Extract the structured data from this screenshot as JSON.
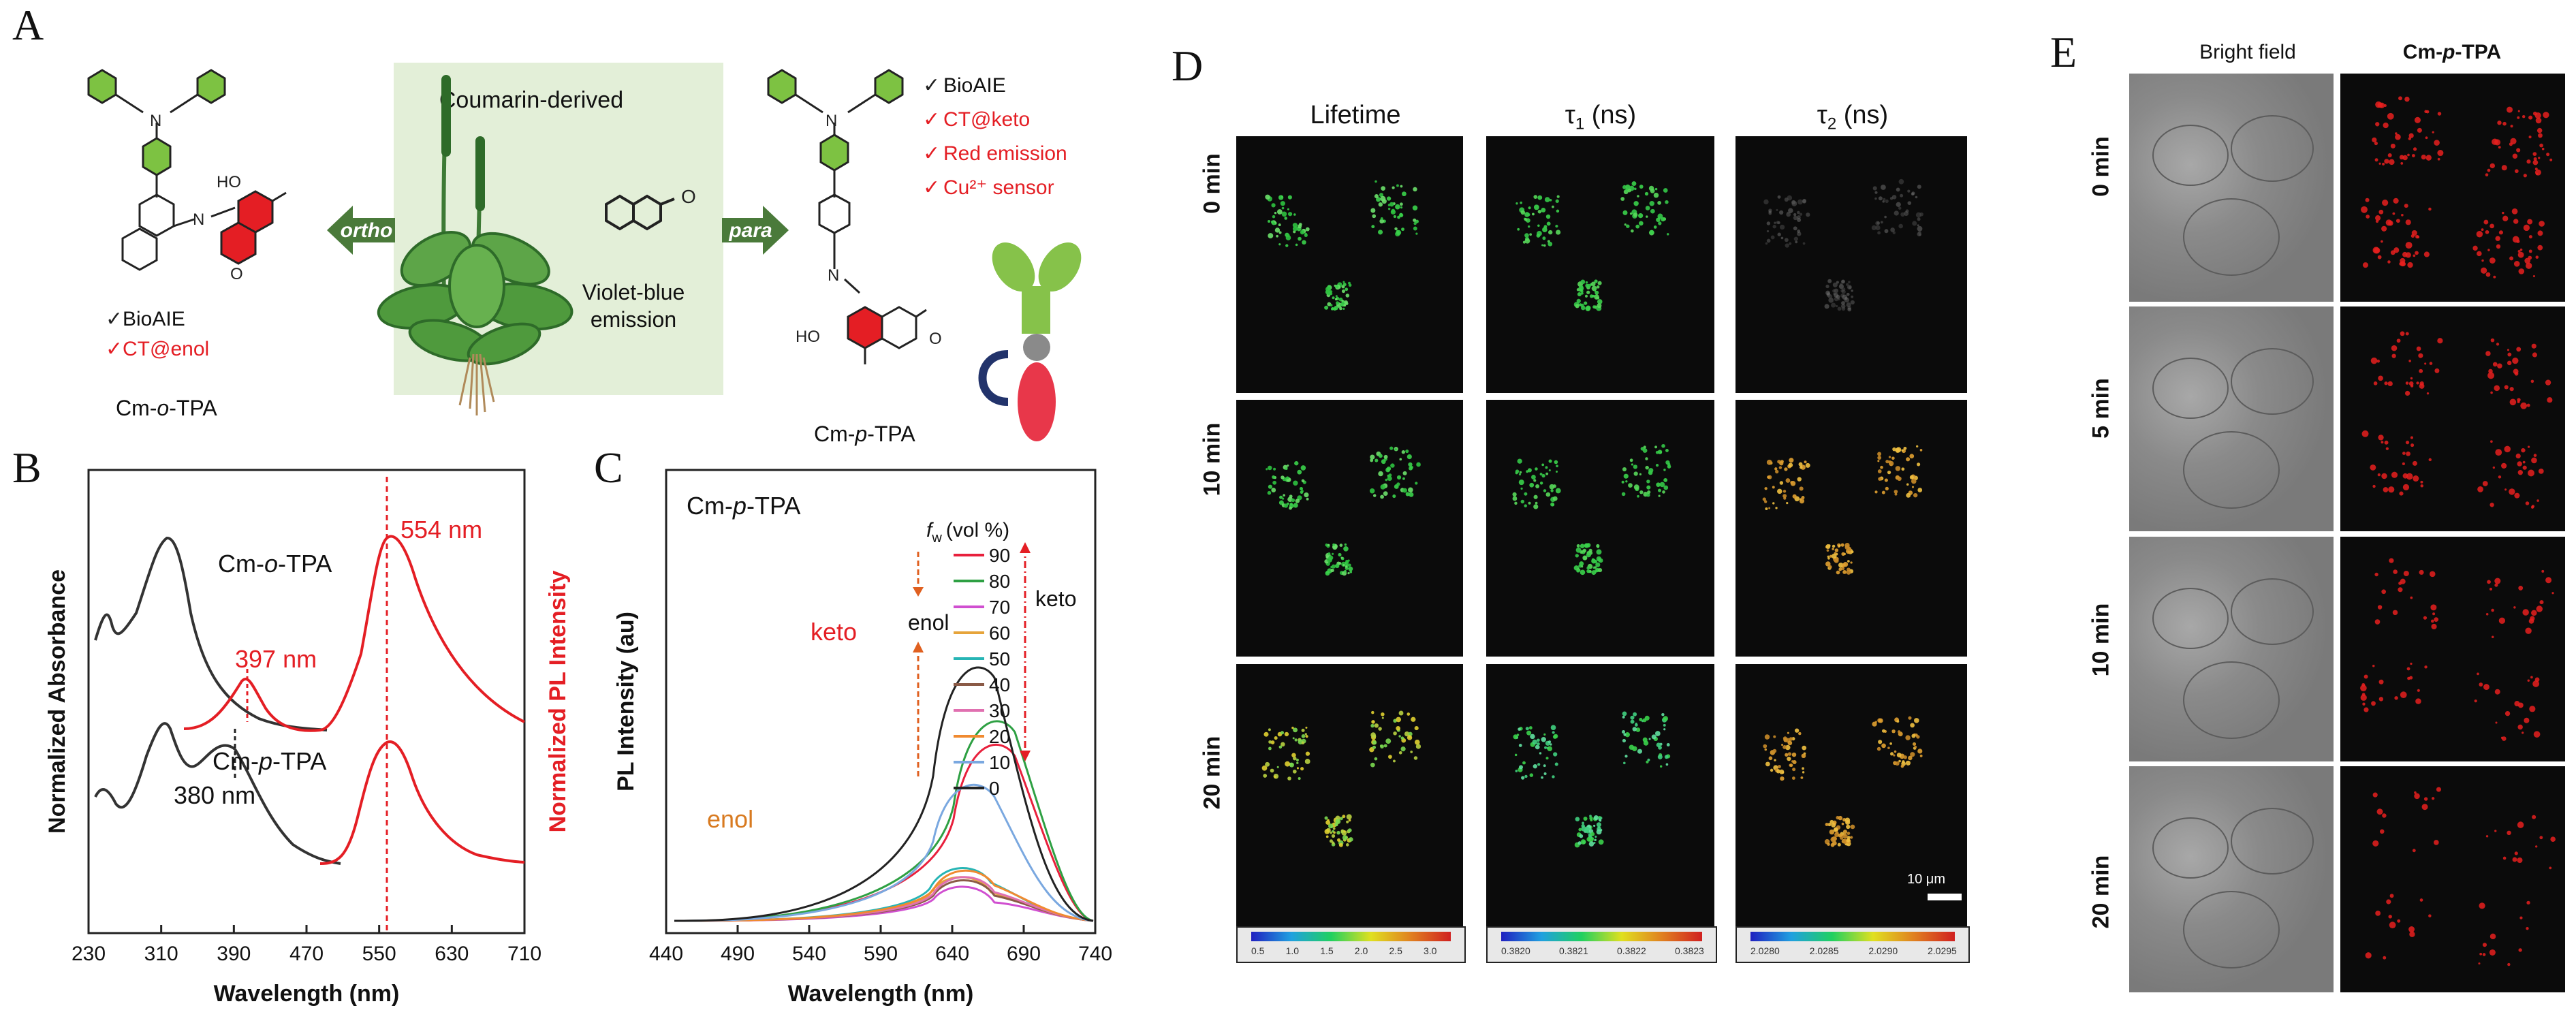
{
  "panels": {
    "A": "A",
    "B": "B",
    "C": "C",
    "D": "D",
    "E": "E"
  },
  "panelA": {
    "plant_label": "Coumarin-derived",
    "violet": [
      "Violet-blue",
      "emission"
    ],
    "ortho": "ortho",
    "para": "para",
    "left_checks": [
      "BioAIE",
      "CT@enol"
    ],
    "right_checks": [
      "BioAIE",
      "CT@keto",
      "Red emission",
      "Cu²⁺ sensor"
    ],
    "left_name": {
      "pre": "Cm-",
      "it": "o",
      "post": "-TPA"
    },
    "right_name": {
      "pre": "Cm-",
      "it": "p",
      "post": "-TPA"
    },
    "atoms": {
      "n": "N",
      "ho": "HO",
      "o": "O"
    },
    "check_mark": "✓",
    "colors": {
      "red": "#e41e24",
      "green": "#4a7a3a"
    }
  },
  "panelB": {
    "ylabel_left": "Normalized Absorbance",
    "ylabel_right": "Normalized PL Intensity",
    "xlabel": "Wavelength (nm)",
    "xticks": [
      "230",
      "310",
      "390",
      "470",
      "550",
      "630",
      "710"
    ],
    "ann_554": "554 nm",
    "ann_397": "397 nm",
    "ann_380": "380 nm",
    "label_o": {
      "pre": "Cm-",
      "it": "o",
      "post": "-TPA"
    },
    "label_p": {
      "pre": "Cm-",
      "it": "p",
      "post": "-TPA"
    }
  },
  "panelC": {
    "title": {
      "pre": "Cm-",
      "it": "p",
      "post": "-TPA"
    },
    "ylabel": "PL Intensity (au)",
    "xlabel": "Wavelength (nm)",
    "xticks": [
      "440",
      "490",
      "540",
      "590",
      "640",
      "690",
      "740"
    ],
    "legend_title": "(vol %)",
    "legend_fw": "f",
    "legend_fw_sub": "w",
    "keto": "keto",
    "enol": "enol",
    "enol_side": "enol",
    "keto_side": "keto",
    "legend": [
      {
        "fw": "90",
        "color": "#e8203c"
      },
      {
        "fw": "80",
        "color": "#2ea043"
      },
      {
        "fw": "70",
        "color": "#d04fd0"
      },
      {
        "fw": "60",
        "color": "#e6a43a"
      },
      {
        "fw": "50",
        "color": "#27b5b5"
      },
      {
        "fw": "40",
        "color": "#8a5a46"
      },
      {
        "fw": "30",
        "color": "#e070b0"
      },
      {
        "fw": "20",
        "color": "#f08a30"
      },
      {
        "fw": "10",
        "color": "#7aa8e0"
      },
      {
        "fw": "0",
        "color": "#222222"
      }
    ]
  },
  "panelD": {
    "cols": [
      "Lifetime",
      "τ",
      "τ"
    ],
    "col_sub": [
      "",
      "1",
      "2"
    ],
    "col_unit": [
      "",
      "(ns)",
      "(ns)"
    ],
    "rows": [
      "0 min",
      "10 min",
      "20 min"
    ],
    "scalebar": "10 μm",
    "cb1": [
      "0.5",
      "1.0",
      "1.5",
      "2.0",
      "2.5",
      "3.0"
    ],
    "cb2": [
      "0.3820",
      "0.3821",
      "0.3822",
      "0.3823"
    ],
    "cb3": [
      "2.0280",
      "2.0285",
      "2.0290",
      "2.0295"
    ]
  },
  "panelE": {
    "cols": [
      "Bright field",
      "Cm-p-TPA"
    ],
    "col2": {
      "pre": "Cm-",
      "it": "p",
      "post": "-TPA"
    },
    "rows": [
      "0 min",
      "5 min",
      "10 min",
      "20 min"
    ]
  }
}
